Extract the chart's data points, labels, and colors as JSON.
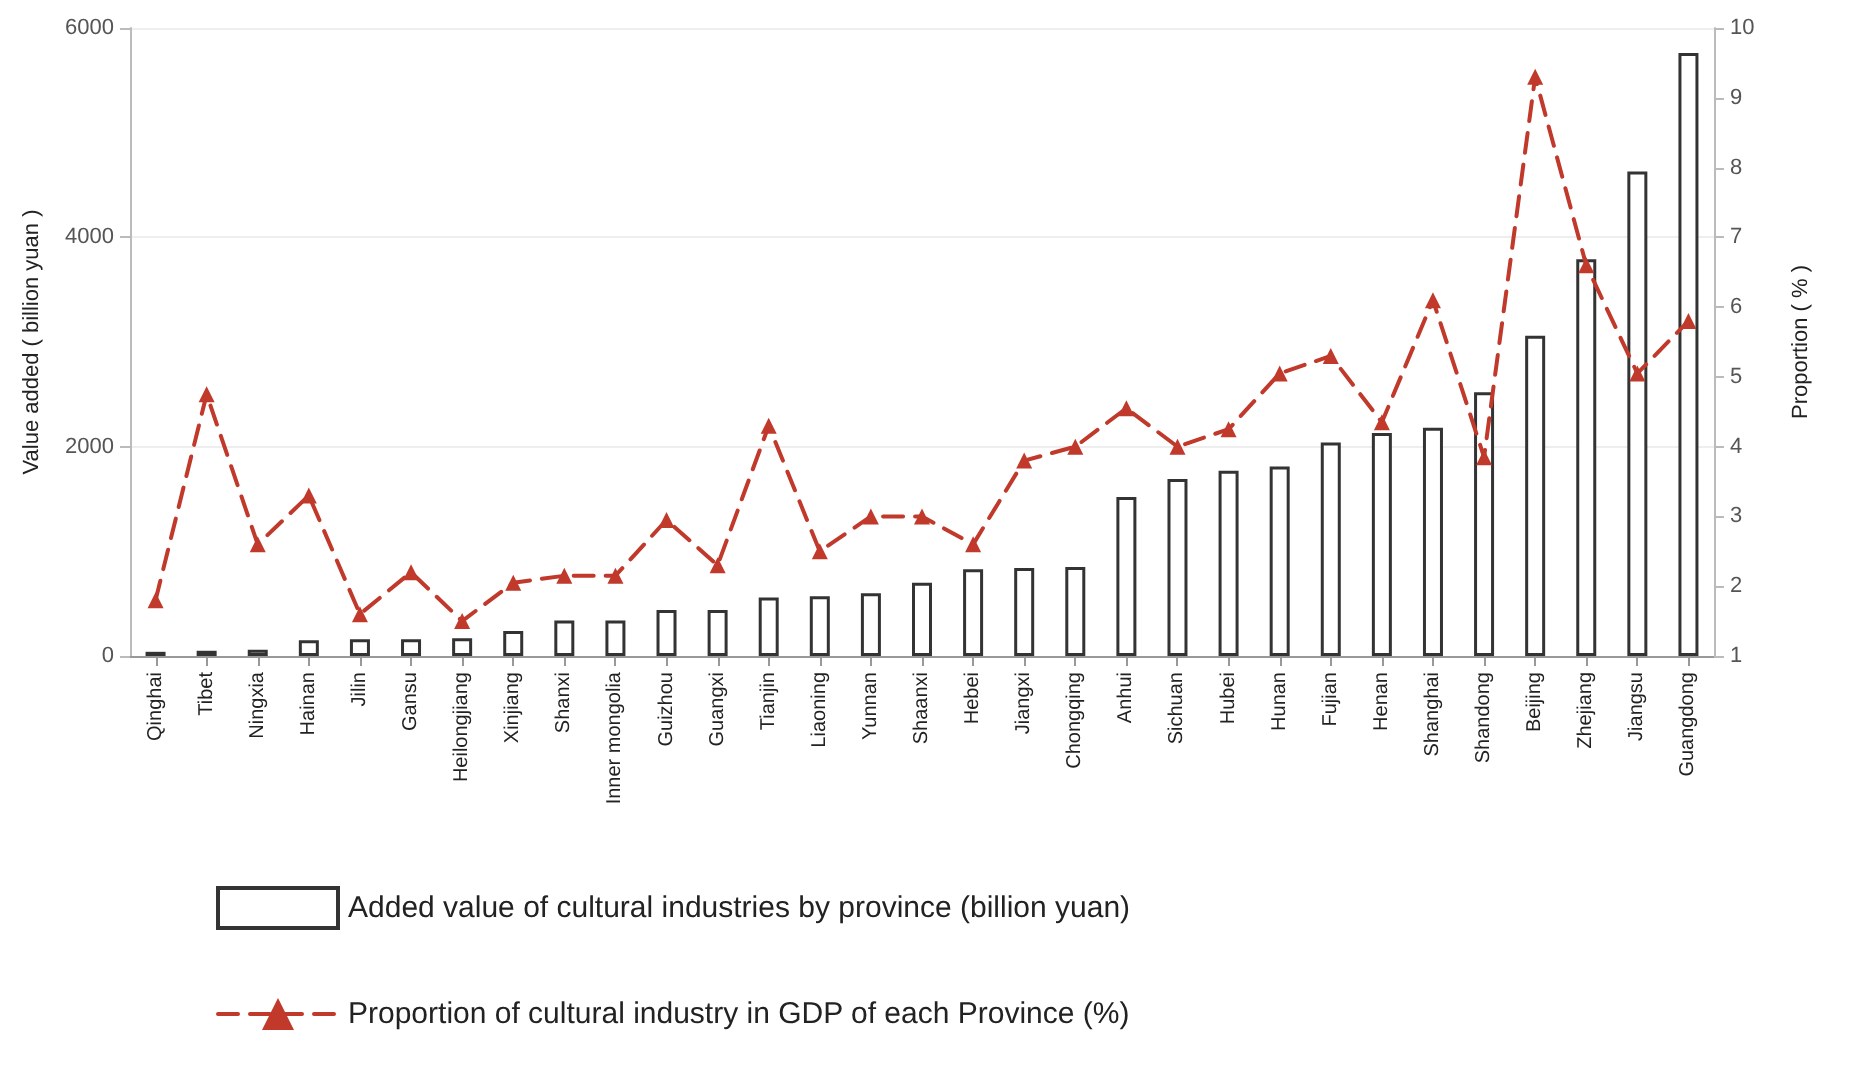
{
  "chart_data": {
    "type": "bar",
    "ylabel": "Value added ( billion yuan )",
    "y2label": "Proportion ( % )",
    "categories": [
      "Qinghai",
      "Tibet",
      "Ningxia",
      "Hainan",
      "Jilin",
      "Gansu",
      "Heilongjiang",
      "Xinjiang",
      "Shanxi",
      "Inner mongolia",
      "Guizhou",
      "Guangxi",
      "Tianjin",
      "Liaoning",
      "Yunnan",
      "Shaanxi",
      "Hebei",
      "Jiangxi",
      "Chongqing",
      "Anhui",
      "Sichuan",
      "Hubei",
      "Hunan",
      "Fujian",
      "Henan",
      "Shanghai",
      "Shandong",
      "Beijing",
      "Zhejiang",
      "Jiangsu",
      "Guangdong"
    ],
    "series": [
      {
        "name": "Added value of cultural industries by province (billion yuan)",
        "color": "#333333",
        "values": [
          40,
          50,
          60,
          150,
          160,
          160,
          170,
          240,
          340,
          340,
          440,
          440,
          560,
          570,
          600,
          700,
          830,
          840,
          850,
          1520,
          1690,
          1770,
          1810,
          2040,
          2130,
          2180,
          2520,
          3060,
          3790,
          4630,
          5760
        ]
      },
      {
        "name": "Proportion of cultural industry in GDP of each Province (%)",
        "type": "line",
        "axis": "y2",
        "color": "#c0392b",
        "marker": "triangle",
        "line_style": "dashed",
        "values": [
          1.8,
          4.75,
          2.6,
          3.3,
          1.6,
          2.2,
          1.5,
          2.05,
          2.15,
          2.15,
          2.95,
          2.3,
          4.3,
          2.5,
          3.0,
          3.0,
          2.6,
          3.8,
          4.0,
          4.55,
          4.0,
          4.25,
          5.05,
          5.3,
          4.35,
          6.1,
          3.85,
          9.3,
          6.6,
          5.05,
          5.8
        ]
      }
    ],
    "ylim": [
      0,
      6000
    ],
    "yticks": [
      0,
      2000,
      4000,
      6000
    ],
    "y2lim": [
      1,
      10
    ],
    "y2ticks": [
      1,
      2,
      3,
      4,
      5,
      6,
      7,
      8,
      9,
      10
    ],
    "grid": "y",
    "legend": "bottom"
  }
}
